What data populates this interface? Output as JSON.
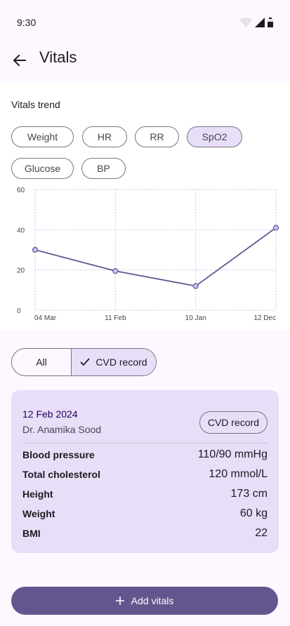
{
  "status_bar": {
    "time": "9:30",
    "icons": [
      "wifi-icon",
      "signal-icon",
      "battery-icon"
    ]
  },
  "top_bar": {
    "title": "Vitals",
    "back_icon": "arrow-back-icon"
  },
  "trend": {
    "title": "Vitals trend",
    "chips": [
      {
        "label": "Weight",
        "selected": false
      },
      {
        "label": "HR",
        "selected": false
      },
      {
        "label": "RR",
        "selected": false
      },
      {
        "label": "SpO2",
        "selected": true
      },
      {
        "label": "Glucose",
        "selected": false
      },
      {
        "label": "BP",
        "selected": false
      }
    ]
  },
  "chart_data": {
    "type": "line",
    "x": [
      "04 Mar",
      "11 Feb",
      "10 Jan",
      "12 Dec"
    ],
    "values": [
      30,
      19.5,
      12,
      41
    ],
    "ylim": [
      0,
      60
    ],
    "y_ticks": [
      "0",
      "20",
      "40",
      "60"
    ],
    "grid": true,
    "color": "#65558f",
    "point_fill": "#d0bcff"
  },
  "filter": {
    "all_label": "All",
    "cvd_label": "CVD record",
    "cvd_selected": true
  },
  "record": {
    "date": "12 Feb 2024",
    "doctor": "Dr. Anamika Sood",
    "tag": "CVD record",
    "rows": [
      {
        "label": "Blood pressure",
        "value": "110/90 mmHg"
      },
      {
        "label": "Total cholesterol",
        "value": "120 mmol/L"
      },
      {
        "label": "Height",
        "value": "173 cm"
      },
      {
        "label": "Weight",
        "value": "60 kg"
      },
      {
        "label": "BMI",
        "value": "22"
      }
    ]
  },
  "add_button": {
    "label": "Add vitals",
    "icon": "plus-icon"
  },
  "colors": {
    "primary": "#65558f",
    "secondary_container": "#e8def8",
    "surface": "#fdf7ff"
  }
}
